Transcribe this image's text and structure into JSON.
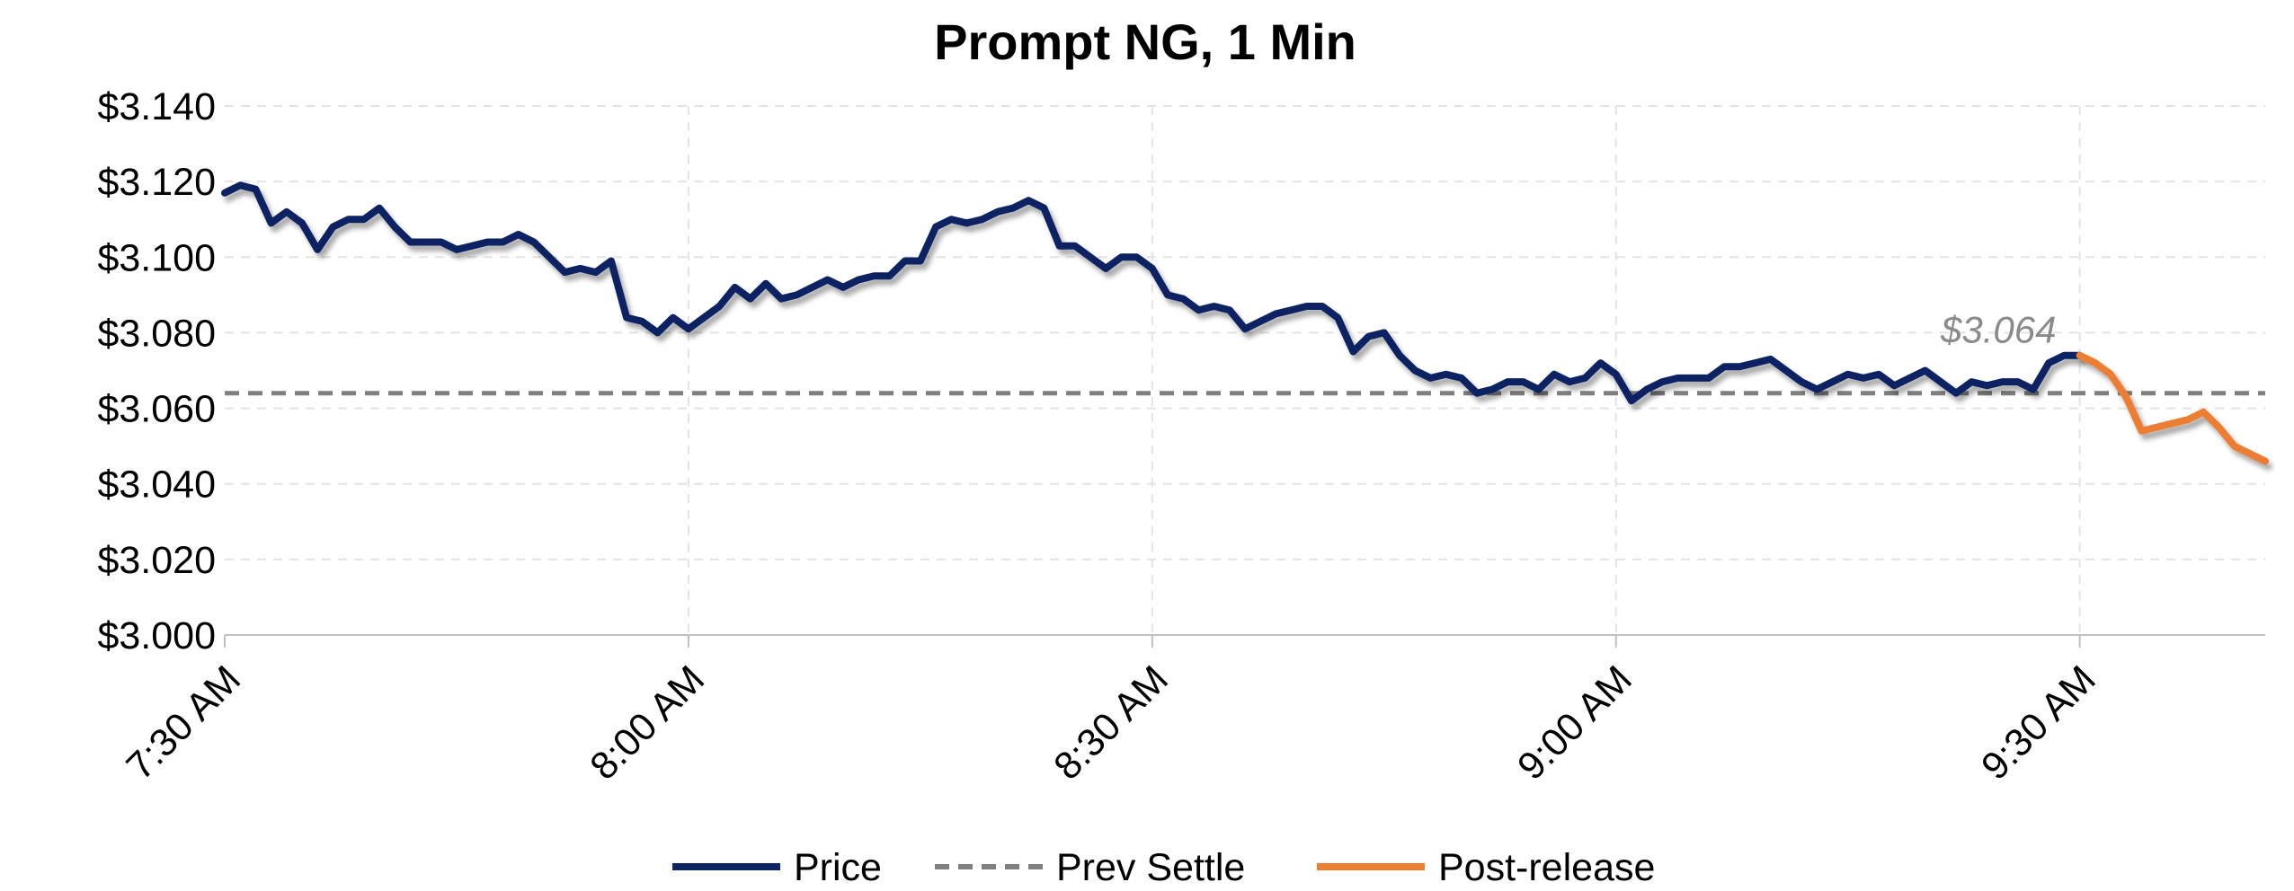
{
  "chart_data": {
    "type": "line",
    "title": "Prompt NG, 1 Min",
    "xlabel": "",
    "ylabel": "",
    "ylim": [
      3.0,
      3.14
    ],
    "yticks": [
      3.0,
      3.02,
      3.04,
      3.06,
      3.08,
      3.1,
      3.12,
      3.14
    ],
    "ytick_labels": [
      "$3.000",
      "$3.020",
      "$3.040",
      "$3.060",
      "$3.080",
      "$3.100",
      "$3.120",
      "$3.140"
    ],
    "x_unit": "minute",
    "x_range": [
      "7:30 AM",
      "9:42 AM"
    ],
    "xticks": [
      "7:30 AM",
      "8:00 AM",
      "8:30 AM",
      "9:00 AM",
      "9:30 AM"
    ],
    "grid": true,
    "legend_position": "bottom",
    "annotation": {
      "text": "$3.064",
      "x": "9:23 AM",
      "y": 3.064
    },
    "colors": {
      "price": "#0d2463",
      "prev_settle": "#7f7f7f",
      "post_release": "#ed7d31"
    },
    "series": [
      {
        "name": "Price",
        "x": [
          "7:30 AM",
          "7:31 AM",
          "7:32 AM",
          "7:33 AM",
          "7:34 AM",
          "7:35 AM",
          "7:36 AM",
          "7:37 AM",
          "7:38 AM",
          "7:39 AM",
          "7:40 AM",
          "7:41 AM",
          "7:42 AM",
          "7:43 AM",
          "7:44 AM",
          "7:45 AM",
          "7:46 AM",
          "7:47 AM",
          "7:48 AM",
          "7:49 AM",
          "7:50 AM",
          "7:51 AM",
          "7:52 AM",
          "7:53 AM",
          "7:54 AM",
          "7:55 AM",
          "7:56 AM",
          "7:57 AM",
          "7:58 AM",
          "7:59 AM",
          "8:00 AM",
          "8:01 AM",
          "8:02 AM",
          "8:03 AM",
          "8:04 AM",
          "8:05 AM",
          "8:06 AM",
          "8:07 AM",
          "8:08 AM",
          "8:09 AM",
          "8:10 AM",
          "8:11 AM",
          "8:12 AM",
          "8:13 AM",
          "8:14 AM",
          "8:15 AM",
          "8:16 AM",
          "8:17 AM",
          "8:18 AM",
          "8:19 AM",
          "8:20 AM",
          "8:21 AM",
          "8:22 AM",
          "8:23 AM",
          "8:24 AM",
          "8:25 AM",
          "8:26 AM",
          "8:27 AM",
          "8:28 AM",
          "8:29 AM",
          "8:30 AM",
          "8:31 AM",
          "8:32 AM",
          "8:33 AM",
          "8:34 AM",
          "8:35 AM",
          "8:36 AM",
          "8:37 AM",
          "8:38 AM",
          "8:39 AM",
          "8:40 AM",
          "8:41 AM",
          "8:42 AM",
          "8:43 AM",
          "8:44 AM",
          "8:45 AM",
          "8:46 AM",
          "8:47 AM",
          "8:48 AM",
          "8:49 AM",
          "8:50 AM",
          "8:51 AM",
          "8:52 AM",
          "8:53 AM",
          "8:54 AM",
          "8:55 AM",
          "8:56 AM",
          "8:57 AM",
          "8:58 AM",
          "8:59 AM",
          "9:00 AM",
          "9:01 AM",
          "9:02 AM",
          "9:03 AM",
          "9:04 AM",
          "9:05 AM",
          "9:06 AM",
          "9:07 AM",
          "9:08 AM",
          "9:09 AM",
          "9:10 AM",
          "9:11 AM",
          "9:12 AM",
          "9:13 AM",
          "9:14 AM",
          "9:15 AM",
          "9:16 AM",
          "9:17 AM",
          "9:18 AM",
          "9:19 AM",
          "9:20 AM",
          "9:21 AM",
          "9:22 AM",
          "9:23 AM",
          "9:24 AM",
          "9:25 AM",
          "9:26 AM",
          "9:27 AM",
          "9:28 AM",
          "9:29 AM",
          "9:30 AM"
        ],
        "values": [
          3.117,
          3.119,
          3.118,
          3.109,
          3.112,
          3.109,
          3.102,
          3.108,
          3.11,
          3.11,
          3.113,
          3.108,
          3.104,
          3.104,
          3.104,
          3.102,
          3.103,
          3.104,
          3.104,
          3.106,
          3.104,
          3.1,
          3.096,
          3.097,
          3.096,
          3.099,
          3.084,
          3.083,
          3.08,
          3.084,
          3.081,
          3.084,
          3.087,
          3.092,
          3.089,
          3.093,
          3.089,
          3.09,
          3.092,
          3.094,
          3.092,
          3.094,
          3.095,
          3.095,
          3.099,
          3.099,
          3.108,
          3.11,
          3.109,
          3.11,
          3.112,
          3.113,
          3.115,
          3.113,
          3.103,
          3.103,
          3.1,
          3.097,
          3.1,
          3.1,
          3.097,
          3.09,
          3.089,
          3.086,
          3.087,
          3.086,
          3.081,
          3.083,
          3.085,
          3.086,
          3.087,
          3.087,
          3.084,
          3.075,
          3.079,
          3.08,
          3.074,
          3.07,
          3.068,
          3.069,
          3.068,
          3.064,
          3.065,
          3.067,
          3.067,
          3.065,
          3.069,
          3.067,
          3.068,
          3.072,
          3.069,
          3.062,
          3.065,
          3.067,
          3.068,
          3.068,
          3.068,
          3.071,
          3.071,
          3.072,
          3.073,
          3.07,
          3.067,
          3.065,
          3.067,
          3.069,
          3.068,
          3.069,
          3.066,
          3.068,
          3.07,
          3.067,
          3.064,
          3.067,
          3.066,
          3.067,
          3.067,
          3.065,
          3.072,
          3.074,
          3.074
        ]
      },
      {
        "name": "Prev Settle",
        "x": [
          "7:30 AM",
          "9:42 AM"
        ],
        "values": [
          3.064,
          3.064
        ]
      },
      {
        "name": "Post-release",
        "x": [
          "9:30 AM",
          "9:31 AM",
          "9:32 AM",
          "9:33 AM",
          "9:34 AM",
          "9:35 AM",
          "9:36 AM",
          "9:37 AM",
          "9:38 AM",
          "9:39 AM",
          "9:40 AM",
          "9:41 AM",
          "9:42 AM"
        ],
        "values": [
          3.074,
          3.072,
          3.069,
          3.063,
          3.054,
          3.055,
          3.056,
          3.057,
          3.059,
          3.055,
          3.05,
          3.048,
          3.046
        ]
      }
    ]
  }
}
